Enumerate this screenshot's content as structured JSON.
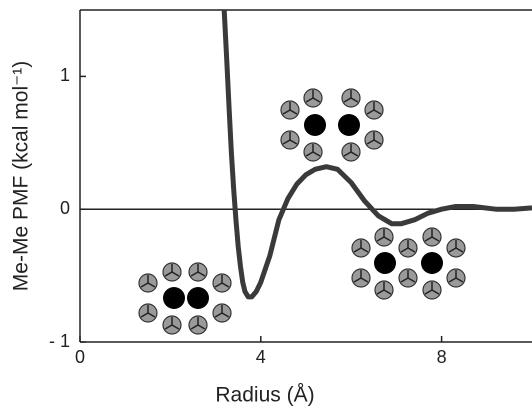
{
  "chart_data": {
    "type": "line",
    "xlabel": "Radius (Å)",
    "ylabel": "Me-Me PMF (kcal mol⁻¹)",
    "x": [
      3.19,
      3.25,
      3.3,
      3.35,
      3.4,
      3.45,
      3.5,
      3.55,
      3.6,
      3.65,
      3.72,
      3.8,
      3.9,
      4.0,
      4.2,
      4.4,
      4.6,
      4.8,
      5.0,
      5.2,
      5.45,
      5.7,
      6.0,
      6.3,
      6.6,
      6.9,
      7.1,
      7.4,
      7.7,
      8.0,
      8.3,
      8.7,
      9.2,
      9.6,
      10
    ],
    "values": [
      1.5,
      1.1,
      0.75,
      0.42,
      0.15,
      -0.08,
      -0.28,
      -0.43,
      -0.55,
      -0.62,
      -0.66,
      -0.66,
      -0.62,
      -0.55,
      -0.35,
      -0.08,
      0.08,
      0.19,
      0.26,
      0.3,
      0.32,
      0.3,
      0.2,
      0.06,
      -0.05,
      -0.11,
      -0.11,
      -0.08,
      -0.03,
      0.0,
      0.02,
      0.02,
      0.0,
      0.0,
      0.01
    ],
    "color": "#3a3a3a",
    "xlim": [
      0,
      10
    ],
    "xticks": [
      0,
      4,
      8
    ],
    "ylim": [
      -1,
      1.5
    ],
    "yticks": [
      {
        "value": -1,
        "label": "- 1"
      },
      0,
      1
    ]
  }
}
